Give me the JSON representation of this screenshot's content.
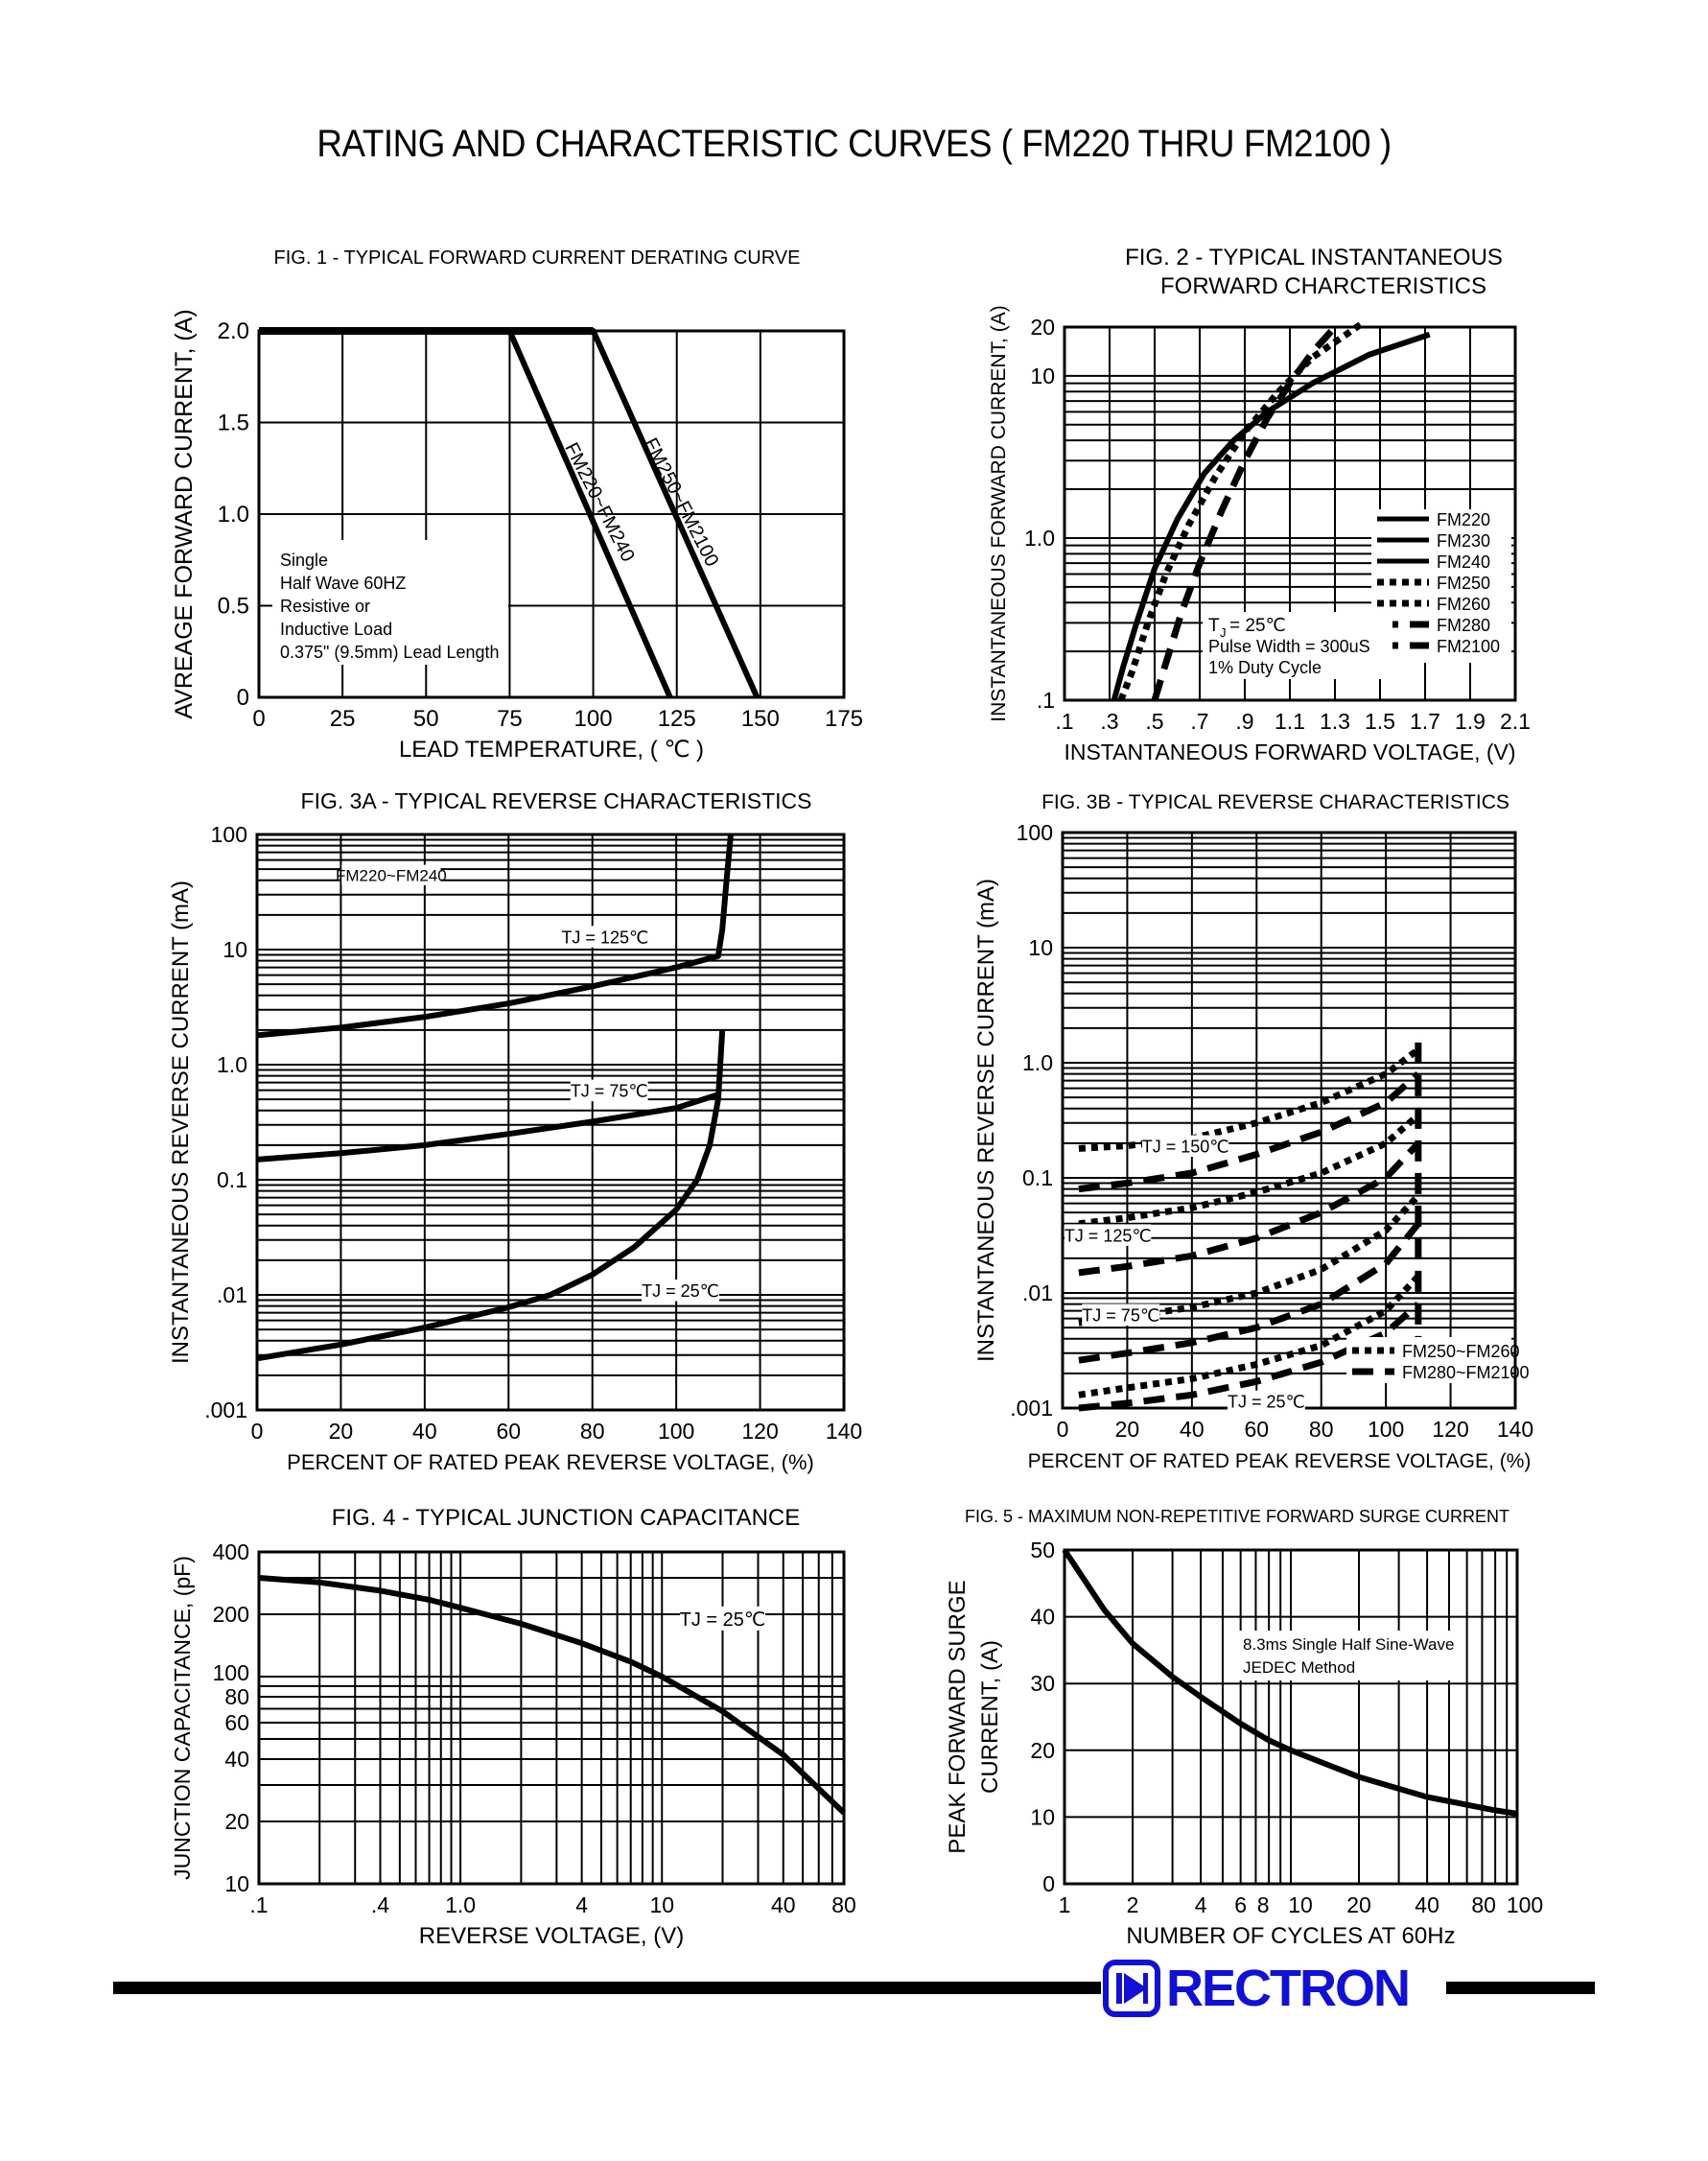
{
  "page": {
    "title": "RATING AND CHARACTERISTIC CURVES ( FM220 THRU FM2100 )"
  },
  "brand": {
    "name": "RECTRON",
    "icon": "rectron-logo-icon",
    "color": "#1010d8"
  },
  "chart_data": [
    {
      "id": "fig1",
      "type": "line",
      "title": "FIG. 1 - TYPICAL FORWARD CURRENT DERATING CURVE",
      "xlabel": "LEAD TEMPERATURE, ( ℃ )",
      "ylabel": "AVREAGE FORWARD CURRENT, (A)",
      "xlim": [
        0,
        175
      ],
      "ylim": [
        0,
        2.0
      ],
      "xscale": "linear",
      "yscale": "linear",
      "xticks": [
        0,
        25,
        50,
        75,
        100,
        125,
        150,
        175
      ],
      "xtick_labels": [
        "0",
        "25",
        "50",
        "75",
        "100",
        "125",
        "150",
        "175"
      ],
      "yticks": [
        0,
        0.5,
        1.0,
        1.5,
        2.0
      ],
      "ytick_labels": [
        "0",
        "0.5",
        "1.0",
        "1.5",
        "2.0"
      ],
      "grid": true,
      "series": [
        {
          "x": [
            0,
            75,
            123
          ],
          "y": [
            2.0,
            2.0,
            0
          ],
          "style": "solid"
        },
        {
          "x": [
            0,
            100,
            149
          ],
          "y": [
            2.0,
            2.0,
            0
          ],
          "style": "solid"
        }
      ],
      "labels": [
        {
          "text": "FM220~FM240",
          "x": 98,
          "y": 1.05,
          "rotate": 63
        },
        {
          "text": "FM250~FM2100",
          "x": 123,
          "y": 1.05,
          "rotate": 63
        }
      ],
      "annotations": [
        {
          "lines": [
            "Single",
            "Half Wave 60HZ",
            "Resistive or",
            "Inductive Load",
            "0.375\" (9.5mm) Lead Length"
          ]
        }
      ]
    },
    {
      "id": "fig2",
      "type": "line",
      "title": [
        "FIG. 2 - TYPICAL INSTANTANEOUS",
        "FORWARD CHARCTERISTICS"
      ],
      "xlabel": "INSTANTANEOUS FORWARD VOLTAGE, (V)",
      "ylabel": "INSTANTANEOUS FORWARD CURRENT, (A)",
      "xlim": [
        0.1,
        2.1
      ],
      "ylim": [
        0.1,
        20
      ],
      "xscale": "linear",
      "yscale": "log",
      "xticks": [
        0.1,
        0.3,
        0.5,
        0.7,
        0.9,
        1.1,
        1.3,
        1.5,
        1.7,
        1.9,
        2.1
      ],
      "xtick_labels": [
        ".1",
        ".3",
        ".5",
        ".7",
        ".9",
        "1.1",
        "1.3",
        "1.5",
        "1.7",
        "1.9",
        "2.1"
      ],
      "ytick_labels_at": [
        0.1,
        1.0,
        10,
        20
      ],
      "ytick_labels": [
        ".1",
        "1.0",
        "10",
        "20"
      ],
      "grid": true,
      "series": [
        {
          "name": "FM220",
          "style": "solid",
          "x": [
            0.32,
            0.36,
            0.42,
            0.5,
            0.6,
            0.72,
            0.85,
            1.0,
            1.2,
            1.45,
            1.72
          ],
          "y": [
            0.1,
            0.16,
            0.3,
            0.65,
            1.3,
            2.5,
            4.0,
            6.0,
            9.0,
            13.5,
            18.0
          ]
        },
        {
          "name": "FM250",
          "style": "dotted",
          "x": [
            0.35,
            0.4,
            0.47,
            0.55,
            0.65,
            0.77,
            0.9,
            1.05,
            1.2,
            1.35,
            1.42
          ],
          "y": [
            0.1,
            0.15,
            0.3,
            0.6,
            1.2,
            2.4,
            4.5,
            8.0,
            13.0,
            18.0,
            21.0
          ]
        },
        {
          "name": "FM280",
          "style": "dashed",
          "x": [
            0.5,
            0.55,
            0.62,
            0.7,
            0.8,
            0.9,
            1.0,
            1.1,
            1.2,
            1.3
          ],
          "y": [
            0.1,
            0.17,
            0.35,
            0.7,
            1.5,
            3.0,
            5.5,
            9.0,
            14.0,
            20.0
          ]
        }
      ],
      "legend": {
        "placement": "right",
        "entries": [
          {
            "name": "FM220",
            "style": "solid"
          },
          {
            "name": "FM230",
            "style": "solid"
          },
          {
            "name": "FM240",
            "style": "solid"
          },
          {
            "name": "FM250",
            "style": "dotted"
          },
          {
            "name": "FM260",
            "style": "dotted"
          },
          {
            "name": "FM280",
            "style": "dashed"
          },
          {
            "name": "FM2100",
            "style": "dashed"
          }
        ]
      },
      "annotations": [
        {
          "lines": [
            "T",
            "J",
            " = 25℃",
            "Pulse Width = 300uS",
            "1% Duty Cycle"
          ]
        }
      ]
    },
    {
      "id": "fig3a",
      "type": "line",
      "title": "FIG. 3A - TYPICAL REVERSE CHARACTERISTICS",
      "xlabel": "PERCENT OF RATED PEAK REVERSE VOLTAGE, (%)",
      "ylabel": "INSTANTANEOUS REVERSE CURRENT (mA)",
      "xlim": [
        0,
        140
      ],
      "ylim": [
        0.001,
        100
      ],
      "xscale": "linear",
      "yscale": "log",
      "xticks": [
        0,
        20,
        40,
        60,
        80,
        100,
        120,
        140
      ],
      "xtick_labels": [
        "0",
        "20",
        "40",
        "60",
        "80",
        "100",
        "120",
        "140"
      ],
      "ytick_labels_at": [
        0.001,
        0.01,
        0.1,
        1.0,
        10,
        100
      ],
      "ytick_labels": [
        ".001",
        ".01",
        "0.1",
        "1.0",
        "10",
        "100"
      ],
      "grid": true,
      "series": [
        {
          "name": "T_J = 125℃",
          "style": "solid",
          "x": [
            0,
            20,
            40,
            60,
            80,
            100,
            110,
            111,
            112,
            113
          ],
          "y": [
            1.8,
            2.1,
            2.6,
            3.4,
            4.8,
            7.0,
            8.8,
            15,
            40,
            100
          ]
        },
        {
          "name": "T_J = 75℃",
          "style": "solid",
          "x": [
            0,
            20,
            40,
            60,
            80,
            100,
            110
          ],
          "y": [
            0.15,
            0.17,
            0.2,
            0.25,
            0.32,
            0.42,
            0.55
          ]
        },
        {
          "name": "T_J = 25℃",
          "style": "solid",
          "x": [
            0,
            20,
            40,
            60,
            70,
            80,
            90,
            100,
            105,
            108,
            110,
            111
          ],
          "y": [
            0.0028,
            0.0037,
            0.0052,
            0.0078,
            0.01,
            0.015,
            0.026,
            0.055,
            0.1,
            0.2,
            0.5,
            2
          ]
        }
      ],
      "labels": [
        "FM220~FM240",
        "T_J = 125℃",
        "T_J = 75℃",
        "T_J = 25℃"
      ]
    },
    {
      "id": "fig3b",
      "type": "line",
      "title": "FIG. 3B - TYPICAL REVERSE CHARACTERISTICS",
      "xlabel": "PERCENT OF RATED PEAK REVERSE VOLTAGE, (%)",
      "ylabel": "INSTANTANEOUS REVERSE CURRENT (mA)",
      "xlim": [
        0,
        140
      ],
      "ylim": [
        0.001,
        100
      ],
      "xscale": "linear",
      "yscale": "log",
      "xticks": [
        0,
        20,
        40,
        60,
        80,
        100,
        120,
        140
      ],
      "xtick_labels": [
        "0",
        "20",
        "40",
        "60",
        "80",
        "100",
        "120",
        "140"
      ],
      "ytick_labels_at": [
        0.001,
        0.01,
        0.1,
        1.0,
        10,
        100
      ],
      "ytick_labels": [
        ".001",
        ".01",
        "0.1",
        "1.0",
        "10",
        "100"
      ],
      "grid": true,
      "series": [
        {
          "name": "FM250~FM260 T_J=150",
          "style": "dotted",
          "x": [
            5,
            20,
            40,
            60,
            80,
            100,
            110
          ],
          "y": [
            0.18,
            0.19,
            0.22,
            0.3,
            0.45,
            0.8,
            1.3
          ]
        },
        {
          "name": "FM280~FM2100 T_J=150",
          "style": "dashed",
          "x": [
            5,
            20,
            40,
            60,
            80,
            100,
            110
          ],
          "y": [
            0.08,
            0.09,
            0.11,
            0.16,
            0.25,
            0.45,
            0.8
          ]
        },
        {
          "name": "FM250~FM260 T_J=125",
          "style": "dotted",
          "x": [
            5,
            20,
            40,
            60,
            80,
            100,
            110
          ],
          "y": [
            0.04,
            0.045,
            0.055,
            0.075,
            0.11,
            0.2,
            0.35
          ]
        },
        {
          "name": "FM280~FM2100 T_J=125",
          "style": "dashed",
          "x": [
            5,
            20,
            40,
            60,
            80,
            100,
            110
          ],
          "y": [
            0.015,
            0.017,
            0.021,
            0.03,
            0.05,
            0.1,
            0.2
          ]
        },
        {
          "name": "FM250~FM260 T_J=75",
          "style": "dotted",
          "x": [
            5,
            20,
            40,
            60,
            80,
            100,
            110
          ],
          "y": [
            0.0055,
            0.0062,
            0.0075,
            0.01,
            0.016,
            0.035,
            0.07
          ]
        },
        {
          "name": "FM280~FM2100 T_J=75",
          "style": "dashed",
          "x": [
            5,
            20,
            40,
            60,
            80,
            100,
            110
          ],
          "y": [
            0.0026,
            0.003,
            0.0037,
            0.005,
            0.008,
            0.018,
            0.04
          ]
        },
        {
          "name": "FM250~FM260 T_J=25",
          "style": "dotted",
          "x": [
            5,
            20,
            40,
            60,
            80,
            100,
            110
          ],
          "y": [
            0.0013,
            0.0015,
            0.0018,
            0.0024,
            0.0035,
            0.007,
            0.014
          ]
        },
        {
          "name": "FM280~FM2100 T_J=25",
          "style": "dashed",
          "x": [
            5,
            20,
            40,
            60,
            80,
            100,
            110
          ],
          "y": [
            0.001,
            0.0011,
            0.0013,
            0.0017,
            0.0025,
            0.0045,
            0.008
          ]
        }
      ],
      "vertical_dashed_x": 110,
      "labels": [
        "T_J = 150℃",
        "T_J = 125℃",
        "T_J = 75℃",
        "T_J = 25℃"
      ],
      "legend": {
        "placement": "bottom-right",
        "entries": [
          {
            "name": "FM250~FM260",
            "style": "dotted"
          },
          {
            "name": "FM280~FM2100",
            "style": "dashed"
          }
        ]
      }
    },
    {
      "id": "fig4",
      "type": "line",
      "title": "FIG. 4 - TYPICAL JUNCTION CAPACITANCE",
      "xlabel": "REVERSE VOLTAGE, (V)",
      "ylabel": "JUNCTION CAPACITANCE, (pF)",
      "xlim": [
        0.1,
        80
      ],
      "ylim": [
        10,
        400
      ],
      "xscale": "log",
      "yscale": "log",
      "xtick_labels_at": [
        0.1,
        0.4,
        1.0,
        4,
        10,
        40,
        80
      ],
      "xtick_labels": [
        ".1",
        ".4",
        "1.0",
        "4",
        "10",
        "40",
        "80"
      ],
      "ytick_labels_at": [
        10,
        20,
        40,
        60,
        80,
        100,
        200,
        400
      ],
      "ytick_labels": [
        "10",
        "20",
        "40",
        "60",
        "80",
        "100",
        "200",
        "400"
      ],
      "grid": true,
      "series": [
        {
          "name": "T_J = 25℃",
          "style": "solid",
          "x": [
            0.1,
            0.2,
            0.4,
            0.7,
            1.0,
            2,
            4,
            7,
            10,
            20,
            40,
            80
          ],
          "y": [
            300,
            285,
            260,
            235,
            215,
            180,
            145,
            118,
            100,
            68,
            42,
            22
          ]
        }
      ],
      "labels": [
        "T_J = 25℃"
      ]
    },
    {
      "id": "fig5",
      "type": "line",
      "title": "FIG. 5 - MAXIMUM NON-REPETITIVE FORWARD SURGE CURRENT",
      "xlabel": "NUMBER OF CYCLES AT 60Hz",
      "ylabel": [
        "PEAK FORWARD SURGE",
        "CURRENT, (A)"
      ],
      "xlim": [
        1,
        100
      ],
      "ylim": [
        0,
        50
      ],
      "xscale": "log",
      "yscale": "linear",
      "xtick_labels_at": [
        1,
        2,
        4,
        6,
        8,
        10,
        20,
        40,
        80,
        100
      ],
      "xtick_labels": [
        "1",
        "2",
        "4",
        "6",
        "8",
        "10",
        "20",
        "40",
        "80",
        "100"
      ],
      "yticks": [
        0,
        10,
        20,
        30,
        40,
        50
      ],
      "ytick_labels": [
        "0",
        "10",
        "20",
        "30",
        "40",
        "50"
      ],
      "grid": true,
      "series": [
        {
          "style": "solid",
          "x": [
            1,
            1.5,
            2,
            3,
            4,
            6,
            8,
            10,
            20,
            40,
            80,
            100
          ],
          "y": [
            50,
            41,
            36,
            31,
            28,
            24,
            21.5,
            20,
            16,
            13,
            11,
            10.5
          ]
        }
      ],
      "annotations": [
        {
          "lines": [
            "8.3ms Single Half Sine-Wave",
            "JEDEC Method"
          ]
        }
      ]
    }
  ]
}
